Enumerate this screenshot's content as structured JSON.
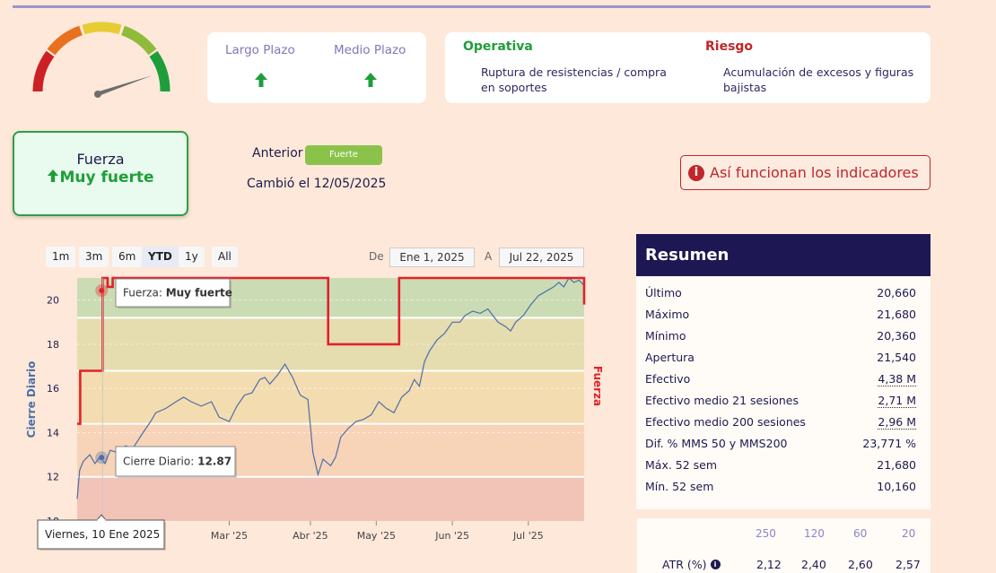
{
  "plazo": {
    "largo_label": "Largo Plazo",
    "medio_label": "Medio Plazo",
    "arrow_color": "#1e9e3a"
  },
  "operativa": {
    "title": "Operativa",
    "text": "Ruptura de resistencias / compra en soportes",
    "color": "#1e9e3a"
  },
  "riesgo": {
    "title": "Riesgo",
    "text": "Acumulación de excesos y figuras bajistas",
    "color": "#c0262a"
  },
  "fuerza_card": {
    "title": "Fuerza",
    "value": "Muy fuerte"
  },
  "anterior": {
    "label": "Anterior",
    "value": "Fuerte",
    "changed": "Cambió el 12/05/2025"
  },
  "info_button": "Así funcionan los indicadores",
  "range_buttons": [
    "1m",
    "3m",
    "6m",
    "YTD",
    "1y",
    "All"
  ],
  "range_selected": "YTD",
  "date_range": {
    "from_label": "De",
    "from": "Ene 1, 2025",
    "to_label": "A",
    "to": "Jul 22, 2025"
  },
  "resumen": {
    "title": "Resumen",
    "rows": [
      {
        "k": "Último",
        "v": "20,660"
      },
      {
        "k": "Máximo",
        "v": "21,680"
      },
      {
        "k": "Mínimo",
        "v": "20,360"
      },
      {
        "k": "Apertura",
        "v": "21,540"
      },
      {
        "k": "Efectivo",
        "v": "4,38 M"
      },
      {
        "k": "Efectivo medio 21 sesiones",
        "v": "2,71 M"
      },
      {
        "k": "Efectivo medio 200 sesiones",
        "v": "2,96 M"
      },
      {
        "k": "Dif. % MMS 50 y MMS200",
        "v": "23,771 %"
      },
      {
        "k": "Máx. 52 sem",
        "v": "21,680"
      },
      {
        "k": "Mín. 52 sem",
        "v": "10,160"
      }
    ]
  },
  "atr": {
    "headers": [
      "250",
      "120",
      "60",
      "20"
    ],
    "label": "ATR (%)",
    "values": [
      "2,12",
      "2,40",
      "2,60",
      "2,57"
    ]
  },
  "chart_data": {
    "type": "line",
    "ylabel": "Cierre Diario",
    "y2label": "Fuerza",
    "ylim": [
      10,
      21
    ],
    "yticks": [
      "10",
      "12",
      "14",
      "16",
      "18",
      "20"
    ],
    "xticks": [
      "Mar '25",
      "Abr '25",
      "May '25",
      "Jun '25",
      "Jul '25"
    ],
    "bands": [
      {
        "from": 10,
        "to": 12,
        "color": "#f1c4b7"
      },
      {
        "from": 12,
        "to": 14.4,
        "color": "#f7d3b8"
      },
      {
        "from": 14.4,
        "to": 16.8,
        "color": "#f3dcb0"
      },
      {
        "from": 16.8,
        "to": 19.2,
        "color": "#e5dcb0"
      },
      {
        "from": 19.2,
        "to": 21,
        "color": "#cbdcb4"
      }
    ],
    "series": [
      {
        "name": "Cierre Diario",
        "color": "#4c6fa8",
        "values": [
          [
            0,
            11.0
          ],
          [
            0.005,
            12.3
          ],
          [
            0.012,
            12.7
          ],
          [
            0.025,
            13.0
          ],
          [
            0.035,
            12.6
          ],
          [
            0.045,
            12.9
          ],
          [
            0.055,
            12.6
          ],
          [
            0.065,
            13.2
          ],
          [
            0.08,
            13.1
          ],
          [
            0.095,
            13.4
          ],
          [
            0.11,
            13.3
          ],
          [
            0.13,
            14.0
          ],
          [
            0.145,
            14.5
          ],
          [
            0.155,
            14.9
          ],
          [
            0.175,
            15.1
          ],
          [
            0.195,
            15.4
          ],
          [
            0.21,
            15.6
          ],
          [
            0.225,
            15.4
          ],
          [
            0.245,
            15.2
          ],
          [
            0.265,
            15.4
          ],
          [
            0.28,
            14.7
          ],
          [
            0.3,
            14.5
          ],
          [
            0.315,
            15.2
          ],
          [
            0.33,
            15.7
          ],
          [
            0.345,
            15.8
          ],
          [
            0.36,
            16.4
          ],
          [
            0.37,
            16.5
          ],
          [
            0.38,
            16.2
          ],
          [
            0.395,
            16.6
          ],
          [
            0.41,
            17.1
          ],
          [
            0.425,
            16.5
          ],
          [
            0.44,
            15.7
          ],
          [
            0.455,
            15.5
          ],
          [
            0.465,
            13.1
          ],
          [
            0.475,
            12.1
          ],
          [
            0.485,
            12.8
          ],
          [
            0.5,
            12.5
          ],
          [
            0.51,
            12.9
          ],
          [
            0.52,
            13.8
          ],
          [
            0.535,
            14.2
          ],
          [
            0.55,
            14.5
          ],
          [
            0.565,
            14.6
          ],
          [
            0.58,
            14.8
          ],
          [
            0.595,
            15.4
          ],
          [
            0.61,
            15.1
          ],
          [
            0.625,
            14.9
          ],
          [
            0.64,
            15.6
          ],
          [
            0.655,
            15.9
          ],
          [
            0.665,
            16.4
          ],
          [
            0.675,
            16.1
          ],
          [
            0.685,
            17.2
          ],
          [
            0.695,
            17.7
          ],
          [
            0.71,
            18.2
          ],
          [
            0.725,
            18.5
          ],
          [
            0.74,
            19.0
          ],
          [
            0.755,
            19.0
          ],
          [
            0.765,
            19.3
          ],
          [
            0.78,
            19.5
          ],
          [
            0.795,
            19.4
          ],
          [
            0.81,
            19.6
          ],
          [
            0.82,
            19.3
          ],
          [
            0.83,
            19.0
          ],
          [
            0.845,
            18.8
          ],
          [
            0.855,
            18.6
          ],
          [
            0.865,
            19.0
          ],
          [
            0.88,
            19.3
          ],
          [
            0.895,
            19.8
          ],
          [
            0.91,
            20.2
          ],
          [
            0.925,
            20.4
          ],
          [
            0.94,
            20.6
          ],
          [
            0.95,
            20.8
          ],
          [
            0.96,
            20.6
          ],
          [
            0.97,
            21.0
          ],
          [
            0.98,
            20.8
          ],
          [
            0.99,
            20.9
          ],
          [
            1.0,
            20.66
          ]
        ]
      },
      {
        "name": "Fuerza",
        "color": "#e0222b",
        "values": [
          [
            0,
            14.4
          ],
          [
            0.006,
            14.4
          ],
          [
            0.006,
            16.8
          ],
          [
            0.05,
            16.8
          ],
          [
            0.05,
            21.0
          ],
          [
            0.06,
            21.0
          ],
          [
            0.06,
            20.6
          ],
          [
            0.07,
            20.6
          ],
          [
            0.07,
            21.0
          ],
          [
            0.495,
            21.0
          ],
          [
            0.495,
            18.0
          ],
          [
            0.635,
            18.0
          ],
          [
            0.635,
            21.0
          ],
          [
            0.76,
            21.0
          ],
          [
            0.76,
            21.0
          ],
          [
            0.765,
            21.0
          ],
          [
            0.765,
            21.0
          ],
          [
            1.0,
            21.0
          ],
          [
            1.0,
            19.8
          ]
        ]
      }
    ],
    "tooltips": {
      "fuerza_label": "Fuerza",
      "fuerza_value": "Muy fuerte",
      "cierre_label": "Cierre Diario",
      "cierre_value": "12.87",
      "date": "Viernes, 10 Ene 2025"
    }
  }
}
